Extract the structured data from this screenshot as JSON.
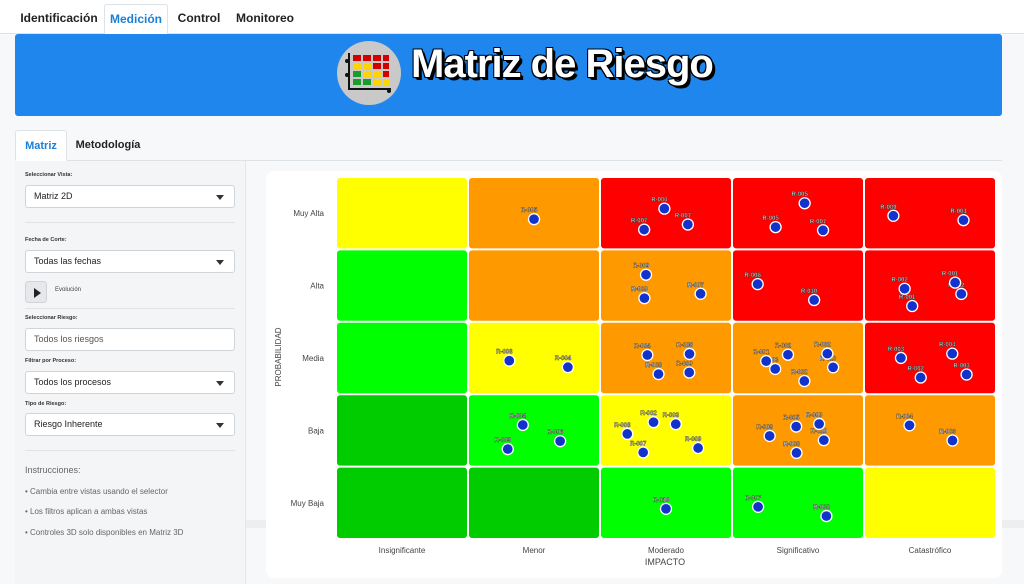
{
  "top_nav": {
    "tabs": [
      "Identificación",
      "Medición",
      "Control",
      "Monitoreo"
    ],
    "active": "Medición"
  },
  "banner": {
    "title": "Matriz de Riesgo",
    "logo_icon": "risk-matrix-icon",
    "color": "#1f86ee"
  },
  "sub_nav": {
    "tabs": [
      "Matriz",
      "Metodología"
    ],
    "active": "Matriz"
  },
  "sidebar": {
    "vista_label": "Seleccionar Vista:",
    "vista_value": "Matriz 2D",
    "fecha_label": "Fecha de Corte:",
    "fecha_value": "Todas las fechas",
    "evolucion_label": "Evolución",
    "riesgo_label": "Seleccionar Riesgo:",
    "riesgo_placeholder": "Todos los riesgos",
    "proceso_label": "Filtrar por Proceso:",
    "proceso_value": "Todos los procesos",
    "tipo_label": "Tipo de Riesgo:",
    "tipo_value": "Riesgo Inherente",
    "instrucciones_title": "Instrucciones:",
    "instrucciones": [
      "• Cambia entre vistas usando el selector",
      "• Los filtros aplican a ambas vistas",
      "• Controles 3D solo disponibles en Matriz 3D"
    ]
  },
  "matrix": {
    "xlabel": "IMPACTO",
    "ylabel": "PROBABILIDAD",
    "impact_levels": [
      "Insignificante",
      "Menor",
      "Moderado",
      "Significativo",
      "Catastrófico"
    ],
    "probability_levels": [
      "Muy Baja",
      "Baja",
      "Media",
      "Alta",
      "Muy Alta"
    ],
    "colors": {
      "red": "#ff0000",
      "orange": "#ff9900",
      "yellow": "#ffff00",
      "lightgreen": "#00ff00",
      "green": "#00cc00",
      "dot": "#1133cc"
    },
    "cell_colors": [
      [
        "green",
        "green",
        "lightgreen",
        "lightgreen",
        "yellow"
      ],
      [
        "green",
        "lightgreen",
        "yellow",
        "orange",
        "orange"
      ],
      [
        "lightgreen",
        "yellow",
        "orange",
        "orange",
        "red"
      ],
      [
        "lightgreen",
        "orange",
        "orange",
        "red",
        "red"
      ],
      [
        "yellow",
        "orange",
        "red",
        "red",
        "red"
      ]
    ],
    "risks": [
      {
        "id": "R-005",
        "impact": 2,
        "prob": 5
      },
      {
        "id": "R-007",
        "impact": 3,
        "prob": 5
      },
      {
        "id": "R-007",
        "impact": 3,
        "prob": 5
      },
      {
        "id": "R-006",
        "impact": 3,
        "prob": 5
      },
      {
        "id": "R-007",
        "impact": 4,
        "prob": 5
      },
      {
        "id": "R-005",
        "impact": 4,
        "prob": 5
      },
      {
        "id": "R-005",
        "impact": 4,
        "prob": 5
      },
      {
        "id": "R-001",
        "impact": 5,
        "prob": 5
      },
      {
        "id": "R-009",
        "impact": 5,
        "prob": 5
      },
      {
        "id": "R-007",
        "impact": 3,
        "prob": 4
      },
      {
        "id": "R-009",
        "impact": 3,
        "prob": 4
      },
      {
        "id": "R-009",
        "impact": 3,
        "prob": 4
      },
      {
        "id": "R-010",
        "impact": 4,
        "prob": 4
      },
      {
        "id": "R-006",
        "impact": 4,
        "prob": 4
      },
      {
        "id": "R-002",
        "impact": 5,
        "prob": 4
      },
      {
        "id": "R-001",
        "impact": 5,
        "prob": 4
      },
      {
        "id": "R-002",
        "impact": 5,
        "prob": 4
      },
      {
        "id": "R-001",
        "impact": 5,
        "prob": 4
      },
      {
        "id": "R-004",
        "impact": 2,
        "prob": 3
      },
      {
        "id": "R-008",
        "impact": 2,
        "prob": 3
      },
      {
        "id": "R-009",
        "impact": 3,
        "prob": 3
      },
      {
        "id": "R-008",
        "impact": 3,
        "prob": 3
      },
      {
        "id": "R-004",
        "impact": 3,
        "prob": 3
      },
      {
        "id": "R-005",
        "impact": 3,
        "prob": 3
      },
      {
        "id": "R-010",
        "impact": 4,
        "prob": 3
      },
      {
        "id": "R-002",
        "impact": 4,
        "prob": 3
      },
      {
        "id": "R-003",
        "impact": 4,
        "prob": 3
      },
      {
        "id": "R-001",
        "impact": 4,
        "prob": 3
      },
      {
        "id": "R-002",
        "impact": 4,
        "prob": 3
      },
      {
        "id": "R-002",
        "impact": 4,
        "prob": 3
      },
      {
        "id": "R-003",
        "impact": 5,
        "prob": 3
      },
      {
        "id": "R-002",
        "impact": 5,
        "prob": 3
      },
      {
        "id": "R-003",
        "impact": 5,
        "prob": 3
      },
      {
        "id": "R-004",
        "impact": 5,
        "prob": 3
      },
      {
        "id": "R-006",
        "impact": 2,
        "prob": 2
      },
      {
        "id": "R-003",
        "impact": 2,
        "prob": 2
      },
      {
        "id": "R-004",
        "impact": 2,
        "prob": 2
      },
      {
        "id": "R-009",
        "impact": 3,
        "prob": 2
      },
      {
        "id": "R-007",
        "impact": 3,
        "prob": 2
      },
      {
        "id": "R-008",
        "impact": 3,
        "prob": 2
      },
      {
        "id": "R-002",
        "impact": 3,
        "prob": 2
      },
      {
        "id": "R-003",
        "impact": 3,
        "prob": 2
      },
      {
        "id": "R-010",
        "impact": 4,
        "prob": 2
      },
      {
        "id": "R-008",
        "impact": 4,
        "prob": 2
      },
      {
        "id": "R-003",
        "impact": 4,
        "prob": 2
      },
      {
        "id": "R-005",
        "impact": 4,
        "prob": 2
      },
      {
        "id": "R-009",
        "impact": 4,
        "prob": 2
      },
      {
        "id": "R-003",
        "impact": 5,
        "prob": 2
      },
      {
        "id": "R-004",
        "impact": 5,
        "prob": 2
      },
      {
        "id": "R-010",
        "impact": 3,
        "prob": 1
      },
      {
        "id": "R-008",
        "impact": 4,
        "prob": 1
      },
      {
        "id": "R-007",
        "impact": 4,
        "prob": 1
      }
    ]
  }
}
